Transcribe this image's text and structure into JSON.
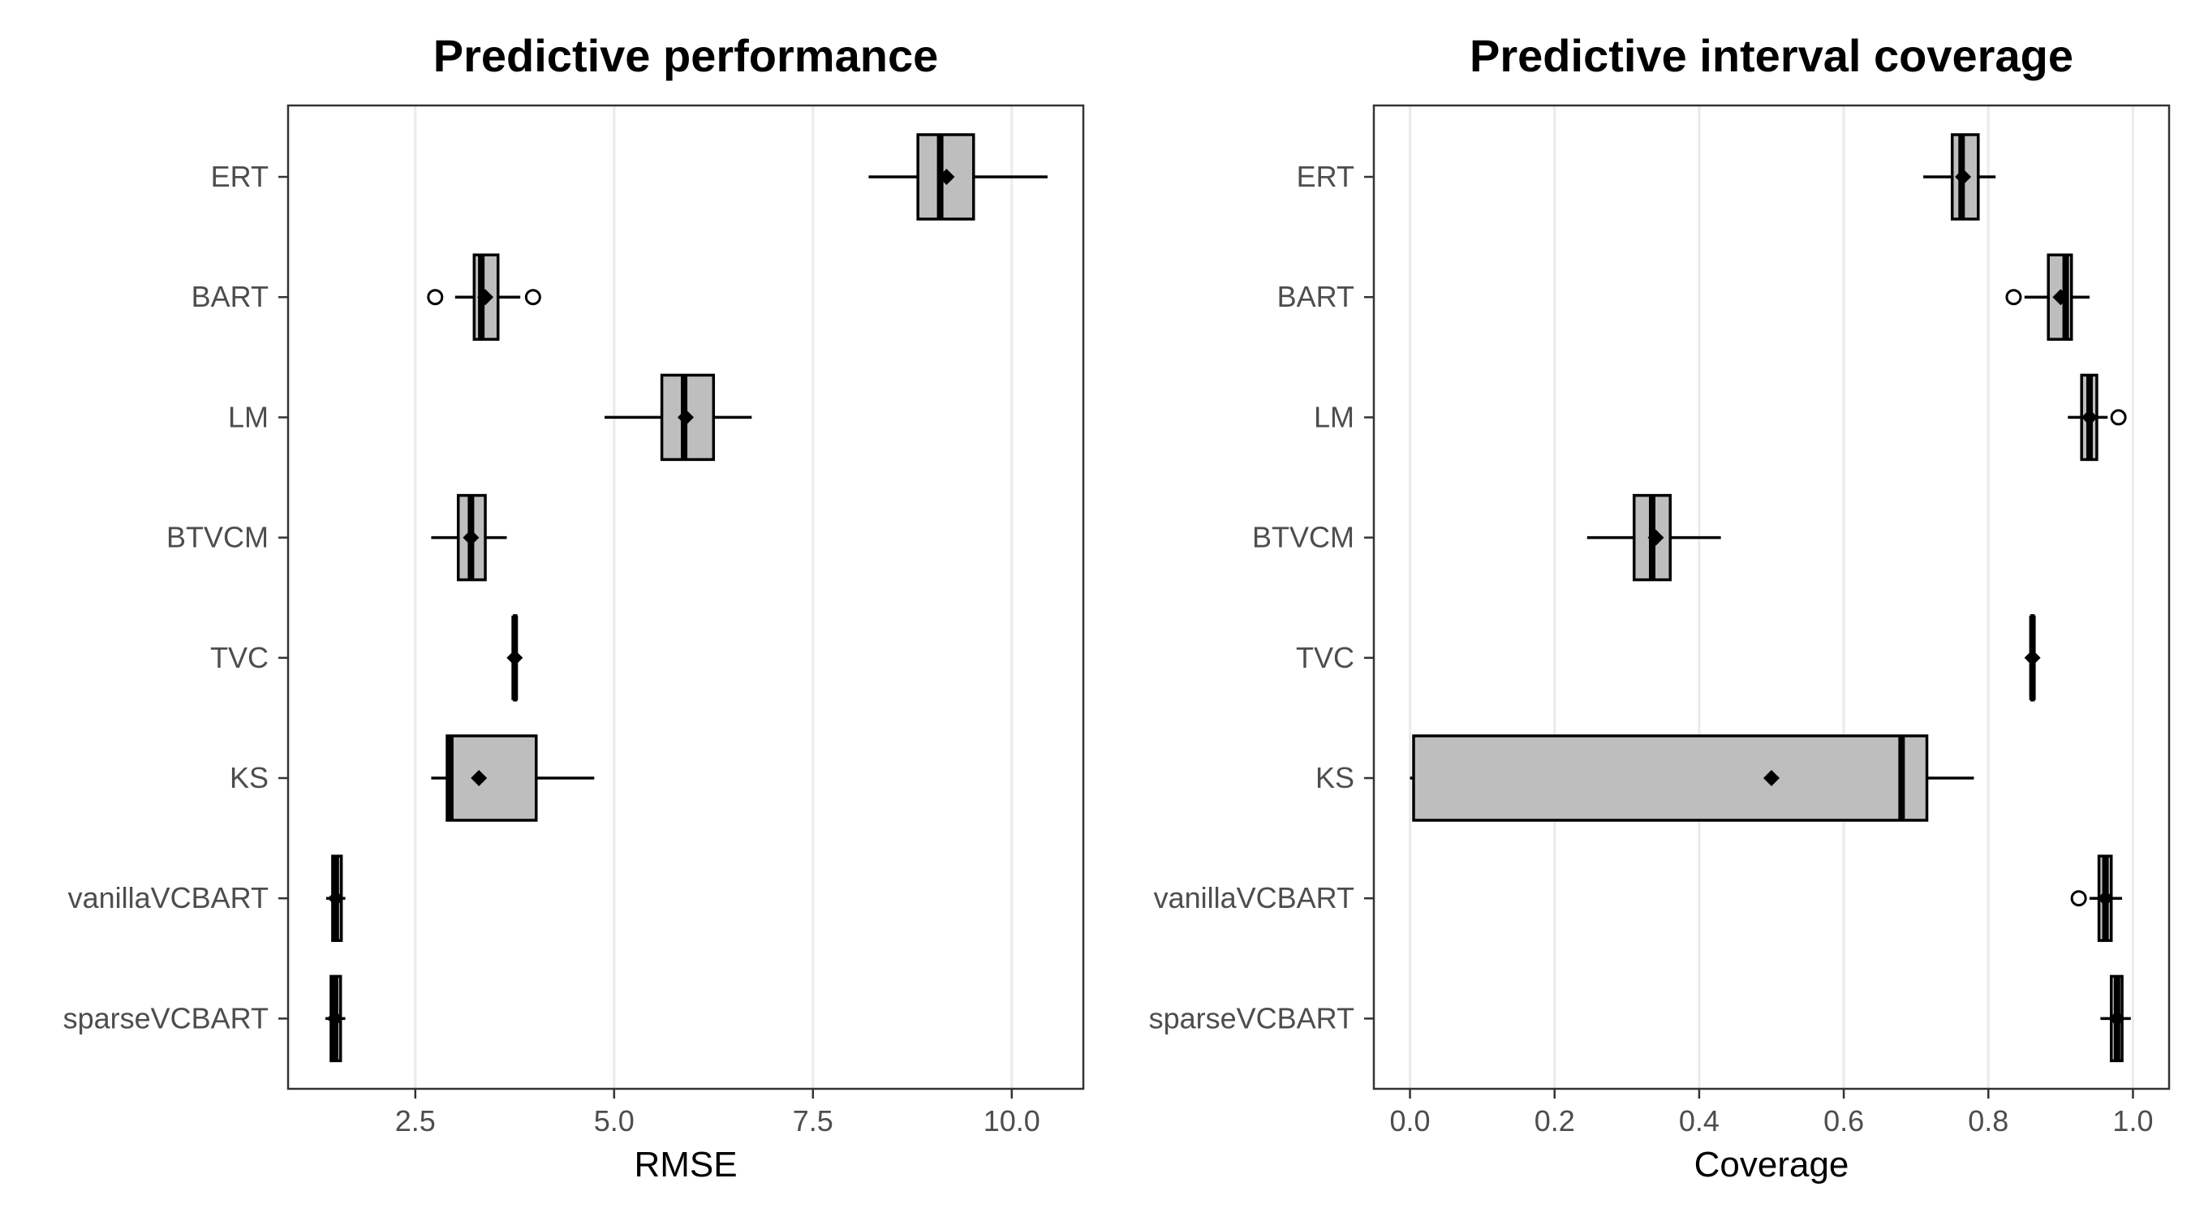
{
  "chart_data": [
    {
      "type": "boxplot",
      "title": "Predictive performance",
      "xlabel": "RMSE",
      "ylabel": "",
      "xlim": [
        0.9,
        10.9
      ],
      "xticks": [
        2.5,
        5.0,
        7.5,
        10.0
      ],
      "xtick_labels": [
        "2.5",
        "5.0",
        "7.5",
        "10.0"
      ],
      "grid": "vertical major",
      "categories": [
        "ERT",
        "BART",
        "LM",
        "BTVCM",
        "TVC",
        "KS",
        "vanillaVCBART",
        "sparseVCBART"
      ],
      "boxes": [
        {
          "label": "ERT",
          "whisker_low": 8.2,
          "q1": 8.82,
          "median": 9.1,
          "q3": 9.52,
          "whisker_high": 10.45,
          "mean": 9.18,
          "outliers": []
        },
        {
          "label": "BART",
          "whisker_low": 3.0,
          "q1": 3.24,
          "median": 3.33,
          "q3": 3.54,
          "whisker_high": 3.82,
          "mean": 3.38,
          "outliers": [
            2.75,
            3.98
          ]
        },
        {
          "label": "LM",
          "whisker_low": 4.88,
          "q1": 5.6,
          "median": 5.88,
          "q3": 6.25,
          "whisker_high": 6.73,
          "mean": 5.9,
          "outliers": []
        },
        {
          "label": "BTVCM",
          "whisker_low": 2.7,
          "q1": 3.04,
          "median": 3.2,
          "q3": 3.38,
          "whisker_high": 3.65,
          "mean": 3.2,
          "outliers": []
        },
        {
          "label": "TVC",
          "whisker_low": 3.74,
          "q1": 3.745,
          "median": 3.75,
          "q3": 3.755,
          "whisker_high": 3.76,
          "mean": 3.75,
          "outliers": []
        },
        {
          "label": "KS",
          "whisker_low": 2.7,
          "q1": 2.9,
          "median": 2.94,
          "q3": 4.02,
          "whisker_high": 4.75,
          "mean": 3.3,
          "outliers": []
        },
        {
          "label": "vanillaVCBART",
          "whisker_low": 1.38,
          "q1": 1.46,
          "median": 1.5,
          "q3": 1.57,
          "whisker_high": 1.62,
          "mean": 1.5,
          "outliers": []
        },
        {
          "label": "sparseVCBART",
          "whisker_low": 1.37,
          "q1": 1.44,
          "median": 1.49,
          "q3": 1.56,
          "whisker_high": 1.62,
          "mean": 1.49,
          "outliers": []
        }
      ]
    },
    {
      "type": "boxplot",
      "title": "Predictive interval coverage",
      "xlabel": "Coverage",
      "ylabel": "",
      "xlim": [
        -0.05,
        1.05
      ],
      "xticks": [
        0.0,
        0.2,
        0.4,
        0.6,
        0.8,
        1.0
      ],
      "xtick_labels": [
        "0.0",
        "0.2",
        "0.4",
        "0.6",
        "0.8",
        "1.0"
      ],
      "grid": "vertical major",
      "categories": [
        "ERT",
        "BART",
        "LM",
        "BTVCM",
        "TVC",
        "KS",
        "vanillaVCBART",
        "sparseVCBART"
      ],
      "boxes": [
        {
          "label": "ERT",
          "whisker_low": 0.71,
          "q1": 0.75,
          "median": 0.763,
          "q3": 0.786,
          "whisker_high": 0.81,
          "mean": 0.765,
          "outliers": []
        },
        {
          "label": "BART",
          "whisker_low": 0.85,
          "q1": 0.883,
          "median": 0.907,
          "q3": 0.915,
          "whisker_high": 0.94,
          "mean": 0.9,
          "outliers": [
            0.835
          ]
        },
        {
          "label": "LM",
          "whisker_low": 0.91,
          "q1": 0.929,
          "median": 0.94,
          "q3": 0.95,
          "whisker_high": 0.965,
          "mean": 0.94,
          "outliers": [
            0.98
          ]
        },
        {
          "label": "BTVCM",
          "whisker_low": 0.245,
          "q1": 0.31,
          "median": 0.335,
          "q3": 0.36,
          "whisker_high": 0.43,
          "mean": 0.34,
          "outliers": []
        },
        {
          "label": "TVC",
          "whisker_low": 0.859,
          "q1": 0.86,
          "median": 0.861,
          "q3": 0.862,
          "whisker_high": 0.863,
          "mean": 0.861,
          "outliers": []
        },
        {
          "label": "KS",
          "whisker_low": 0.0,
          "q1": 0.005,
          "median": 0.68,
          "q3": 0.715,
          "whisker_high": 0.78,
          "mean": 0.5,
          "outliers": []
        },
        {
          "label": "vanillaVCBART",
          "whisker_low": 0.94,
          "q1": 0.953,
          "median": 0.962,
          "q3": 0.97,
          "whisker_high": 0.985,
          "mean": 0.962,
          "outliers": [
            0.925
          ]
        },
        {
          "label": "sparseVCBART",
          "whisker_low": 0.955,
          "q1": 0.97,
          "median": 0.978,
          "q3": 0.985,
          "whisker_high": 0.997,
          "mean": 0.978,
          "outliers": []
        }
      ]
    }
  ]
}
